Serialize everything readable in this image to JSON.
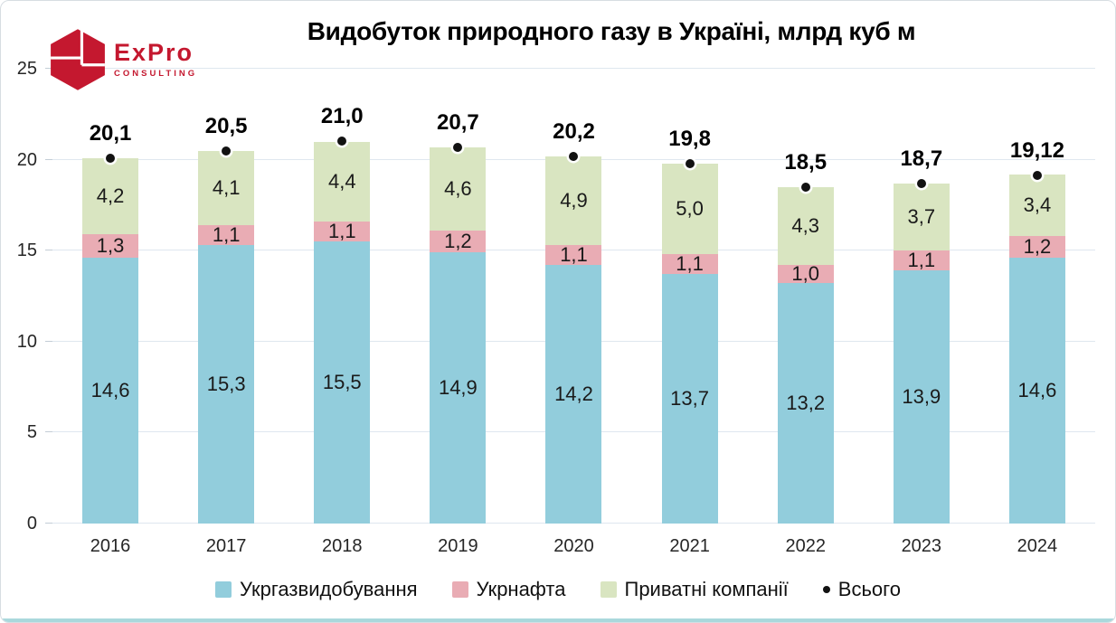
{
  "logo": {
    "wordmark": "ExPro",
    "subtext": "CONSULTING",
    "color": "#c4182f"
  },
  "chart_data": {
    "type": "bar",
    "stacked": true,
    "title": "Видобуток природного газу в Україні, млрд куб м",
    "categories": [
      "2016",
      "2017",
      "2018",
      "2019",
      "2020",
      "2021",
      "2022",
      "2023",
      "2024"
    ],
    "series": [
      {
        "name": "Укргазвидобування",
        "color": "#92cddc",
        "values": [
          14.6,
          15.3,
          15.5,
          14.9,
          14.2,
          13.7,
          13.2,
          13.9,
          14.6
        ],
        "labels": [
          "14,6",
          "15,3",
          "15,5",
          "14,9",
          "14,2",
          "13,7",
          "13,2",
          "13,9",
          "14,6"
        ]
      },
      {
        "name": "Укрнафта",
        "color": "#e9acb4",
        "values": [
          1.3,
          1.1,
          1.1,
          1.2,
          1.1,
          1.1,
          1.0,
          1.1,
          1.2
        ],
        "labels": [
          "1,3",
          "1,1",
          "1,1",
          "1,2",
          "1,1",
          "1,1",
          "1,0",
          "1,1",
          "1,2"
        ]
      },
      {
        "name": "Приватні компанії",
        "color": "#d9e5c1",
        "values": [
          4.2,
          4.1,
          4.4,
          4.6,
          4.9,
          5.0,
          4.3,
          3.7,
          3.4
        ],
        "labels": [
          "4,2",
          "4,1",
          "4,4",
          "4,6",
          "4,9",
          "5,0",
          "4,3",
          "3,7",
          "3,4"
        ]
      }
    ],
    "totals": {
      "name": "Всього",
      "marker_color": "#121212",
      "values": [
        20.1,
        20.5,
        21.0,
        20.7,
        20.2,
        19.8,
        18.5,
        18.7,
        19.12
      ],
      "labels": [
        "20,1",
        "20,5",
        "21,0",
        "20,7",
        "20,2",
        "19,8",
        "18,5",
        "18,7",
        "19,12"
      ]
    },
    "ylim": [
      0,
      25
    ],
    "yticks": [
      0,
      5,
      10,
      15,
      20,
      25
    ],
    "grid": true,
    "legend_position": "bottom"
  }
}
